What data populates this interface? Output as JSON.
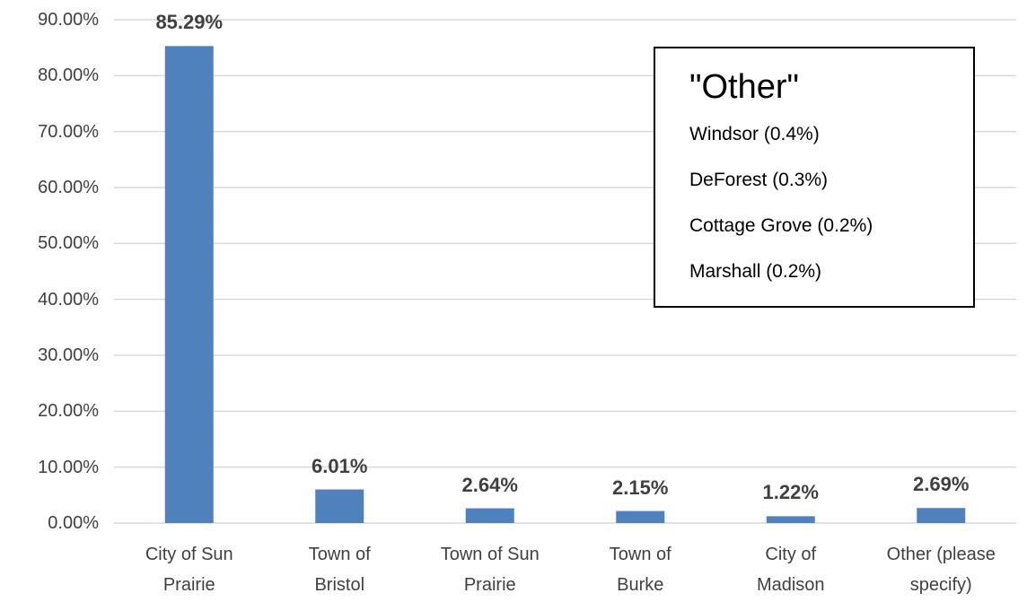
{
  "chart_data": {
    "type": "bar",
    "categories": [
      "City of Sun\nPrairie",
      "Town of\nBristol",
      "Town of Sun\nPrairie",
      "Town of\nBurke",
      "City of\nMadison",
      "Other (please\nspecify)"
    ],
    "values": [
      85.29,
      6.01,
      2.64,
      2.15,
      1.22,
      2.69
    ],
    "value_labels": [
      "85.29%",
      "6.01%",
      "2.64%",
      "2.15%",
      "1.22%",
      "2.69%"
    ],
    "color": "#4f81bd",
    "ylim": [
      0,
      90
    ],
    "yticks": [
      {
        "value": 0,
        "label": "0.00%"
      },
      {
        "value": 10,
        "label": "10.00%"
      },
      {
        "value": 20,
        "label": "20.00%"
      },
      {
        "value": 30,
        "label": "30.00%"
      },
      {
        "value": 40,
        "label": "40.00%"
      },
      {
        "value": 50,
        "label": "50.00%"
      },
      {
        "value": 60,
        "label": "60.00%"
      },
      {
        "value": 70,
        "label": "70.00%"
      },
      {
        "value": 80,
        "label": "80.00%"
      },
      {
        "value": 90,
        "label": "90.00%"
      }
    ],
    "grid": true,
    "annotation": {
      "title": "\"Other\"",
      "items": [
        "Windsor (0.4%)",
        "DeForest (0.3%)",
        "Cottage Grove (0.2%)",
        "Marshall (0.2%)"
      ]
    }
  }
}
